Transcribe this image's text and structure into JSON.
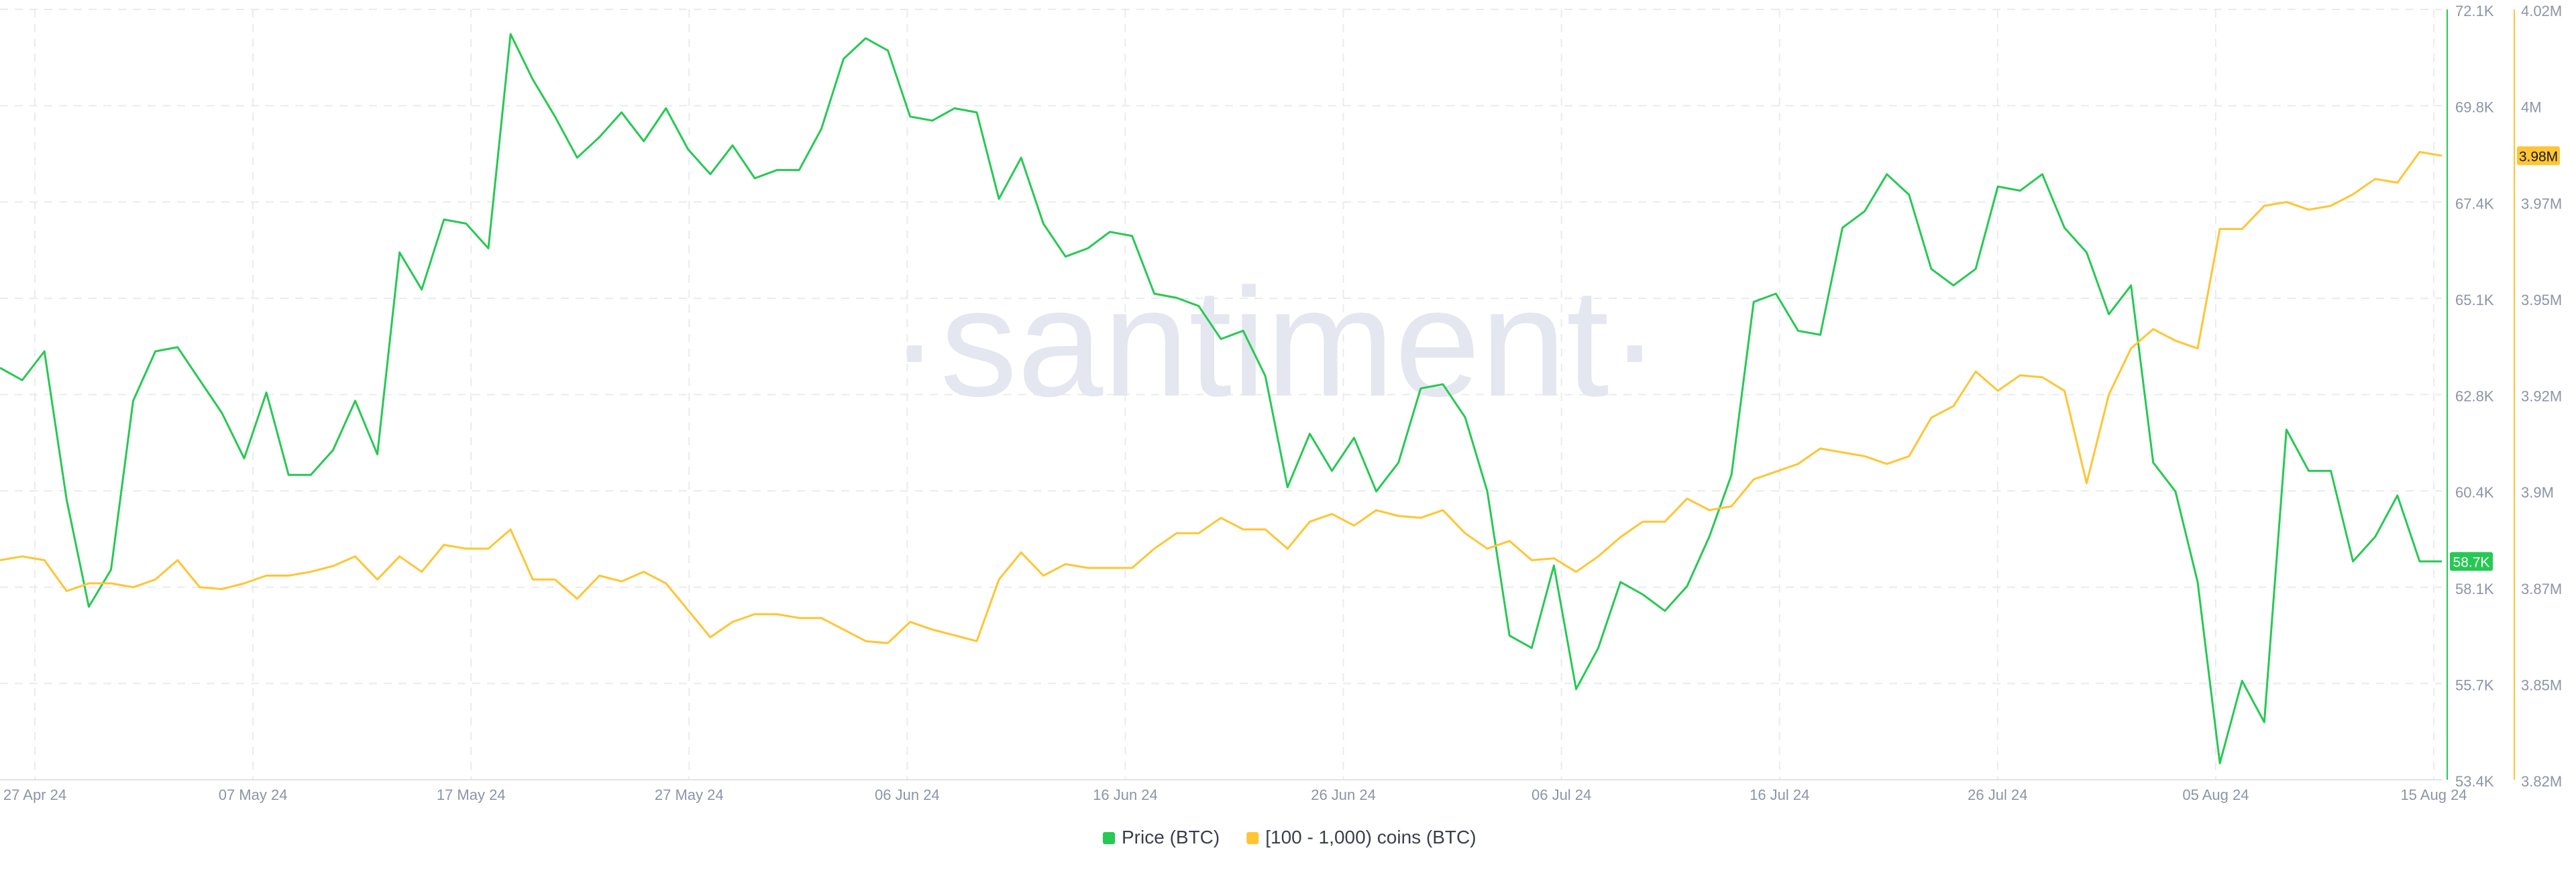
{
  "watermark": "·santiment·",
  "colors": {
    "price": "#26c953",
    "coins": "#ffc532",
    "grid": "#e9ebee",
    "tick_text": "#8c94a6",
    "watermark": "#e4e6f0",
    "legend_text": "#3a3f4b",
    "price_badge_text": "#ffffff",
    "coins_badge_text": "#1a1a1a"
  },
  "chart_data": {
    "type": "line",
    "x_ticks": [
      "27 Apr 24",
      "07 May 24",
      "17 May 24",
      "27 May 24",
      "06 Jun 24",
      "16 Jun 24",
      "26 Jun 24",
      "06 Jul 24",
      "16 Jul 24",
      "26 Jul 24",
      "05 Aug 24",
      "15 Aug 24"
    ],
    "x_range": [
      "2024-04-27",
      "2024-08-15"
    ],
    "grid": true,
    "legend_position": "bottom-center",
    "y_axis_price": {
      "ticks": [
        "72.1K",
        "69.8K",
        "67.4K",
        "65.1K",
        "62.8K",
        "60.4K",
        "58.1K",
        "55.7K",
        "53.4K"
      ],
      "ylim": [
        53400,
        72100
      ]
    },
    "y_axis_coins": {
      "ticks": [
        "4.02M",
        "4M",
        "3.97M",
        "3.95M",
        "3.92M",
        "3.9M",
        "3.87M",
        "3.85M",
        "3.82M"
      ],
      "ylim": [
        3820000,
        4020000
      ]
    },
    "series": [
      {
        "name": "Price (BTC)",
        "axis": "price",
        "current_label": "58.7K",
        "values": [
          63400,
          63100,
          63800,
          60200,
          57600,
          58500,
          62600,
          63800,
          63900,
          63100,
          62300,
          61200,
          62800,
          60800,
          60800,
          61400,
          62600,
          61300,
          66200,
          65300,
          67000,
          66900,
          66300,
          71500,
          70400,
          69500,
          68500,
          69000,
          69600,
          68900,
          69700,
          68700,
          68100,
          68800,
          68000,
          68200,
          68200,
          69200,
          70900,
          71400,
          71100,
          69500,
          69400,
          69700,
          69600,
          67500,
          68500,
          66900,
          66100,
          66300,
          66700,
          66600,
          65200,
          65100,
          64900,
          64100,
          64300,
          63200,
          60500,
          61800,
          60900,
          61700,
          60400,
          61100,
          62900,
          63000,
          62200,
          60400,
          56900,
          56600,
          58600,
          55600,
          56600,
          58200,
          57900,
          57500,
          58100,
          59300,
          60800,
          65000,
          65200,
          64300,
          64200,
          66800,
          67200,
          68100,
          67600,
          65800,
          65400,
          65800,
          67800,
          67700,
          68100,
          66800,
          66200,
          64700,
          65400,
          61100,
          60400,
          58200,
          53800,
          55800,
          54800,
          61900,
          60900,
          60900,
          58700,
          59300,
          60300,
          58700,
          58700
        ]
      },
      {
        "name": "[100 - 1,000) coins (BTC)",
        "axis": "coins",
        "current_label": "3.98M",
        "values": [
          3877000,
          3878000,
          3877000,
          3869000,
          3871000,
          3871000,
          3870000,
          3872000,
          3877000,
          3870000,
          3869500,
          3871000,
          3873000,
          3873000,
          3874000,
          3875500,
          3878000,
          3872000,
          3878000,
          3874000,
          3881000,
          3880000,
          3880000,
          3885000,
          3872000,
          3872000,
          3867000,
          3873000,
          3871500,
          3874000,
          3871000,
          3864000,
          3857000,
          3861000,
          3863000,
          3863000,
          3862000,
          3862000,
          3859000,
          3856000,
          3855500,
          3861000,
          3859000,
          3857500,
          3856000,
          3872000,
          3879000,
          3873000,
          3876000,
          3875000,
          3875000,
          3875000,
          3880000,
          3884000,
          3884000,
          3888000,
          3885000,
          3885000,
          3880000,
          3887000,
          3889000,
          3886000,
          3890000,
          3888500,
          3888000,
          3890000,
          3884000,
          3880000,
          3882000,
          3877000,
          3877500,
          3874000,
          3878000,
          3883000,
          3887000,
          3887000,
          3893000,
          3890000,
          3891000,
          3898000,
          3900000,
          3902000,
          3906000,
          3905000,
          3904000,
          3902000,
          3904000,
          3914000,
          3917000,
          3926000,
          3921000,
          3925000,
          3924500,
          3921000,
          3897000,
          3920000,
          3932000,
          3937000,
          3934000,
          3932000,
          3963000,
          3963000,
          3969000,
          3970000,
          3968000,
          3969000,
          3972000,
          3976000,
          3975000,
          3983000,
          3982000
        ]
      }
    ]
  }
}
